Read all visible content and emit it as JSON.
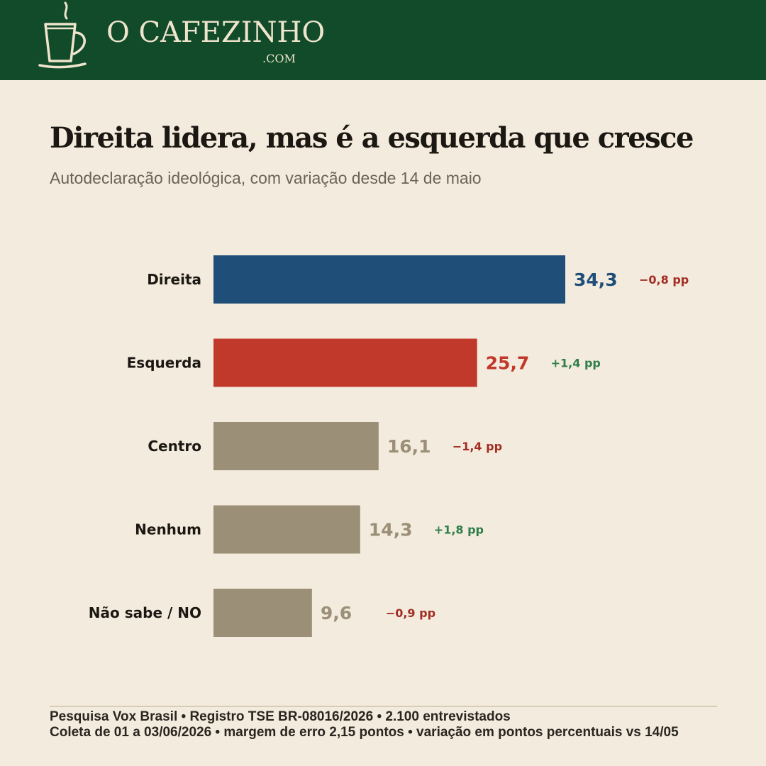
{
  "header": {
    "brand": "O CAFEZINHO",
    "brand_suffix": ".COM",
    "bg_color": "#114b2a",
    "logo_icon": "coffee-cup-icon"
  },
  "title": "Direita lidera, mas é a esquerda que cresce",
  "subtitle": "Autodeclaração ideológica, com variação desde 14 de maio",
  "chart_data": {
    "type": "bar",
    "orientation": "horizontal",
    "categories": [
      "Direita",
      "Esquerda",
      "Centro",
      "Nenhum",
      "Não sabe / NO"
    ],
    "values": [
      34.3,
      25.7,
      16.1,
      14.3,
      9.6
    ],
    "value_labels": [
      "34,3",
      "25,7",
      "16,1",
      "14,3",
      "9,6"
    ],
    "changes": [
      "−0,8 pp",
      "+1,4 pp",
      "−1,4 pp",
      "+1,8 pp",
      "−0,9 pp"
    ],
    "change_direction": [
      "down",
      "up",
      "down",
      "up",
      "down"
    ],
    "bar_colors": [
      "#1f4e79",
      "#c0392b",
      "#9c8f77",
      "#9c8f77",
      "#9c8f77"
    ],
    "change_colors": {
      "up": "#2e7d4a",
      "down": "#a32d24"
    },
    "xlim": [
      0,
      34.3
    ]
  },
  "footer": {
    "line1": "Pesquisa Vox Brasil  •  Registro TSE BR-08016/2026  •  2.100 entrevistados",
    "line2": "Coleta de 01 a 03/06/2026  •  margem de erro 2,15 pontos  •  variação em pontos percentuais vs 14/05"
  }
}
